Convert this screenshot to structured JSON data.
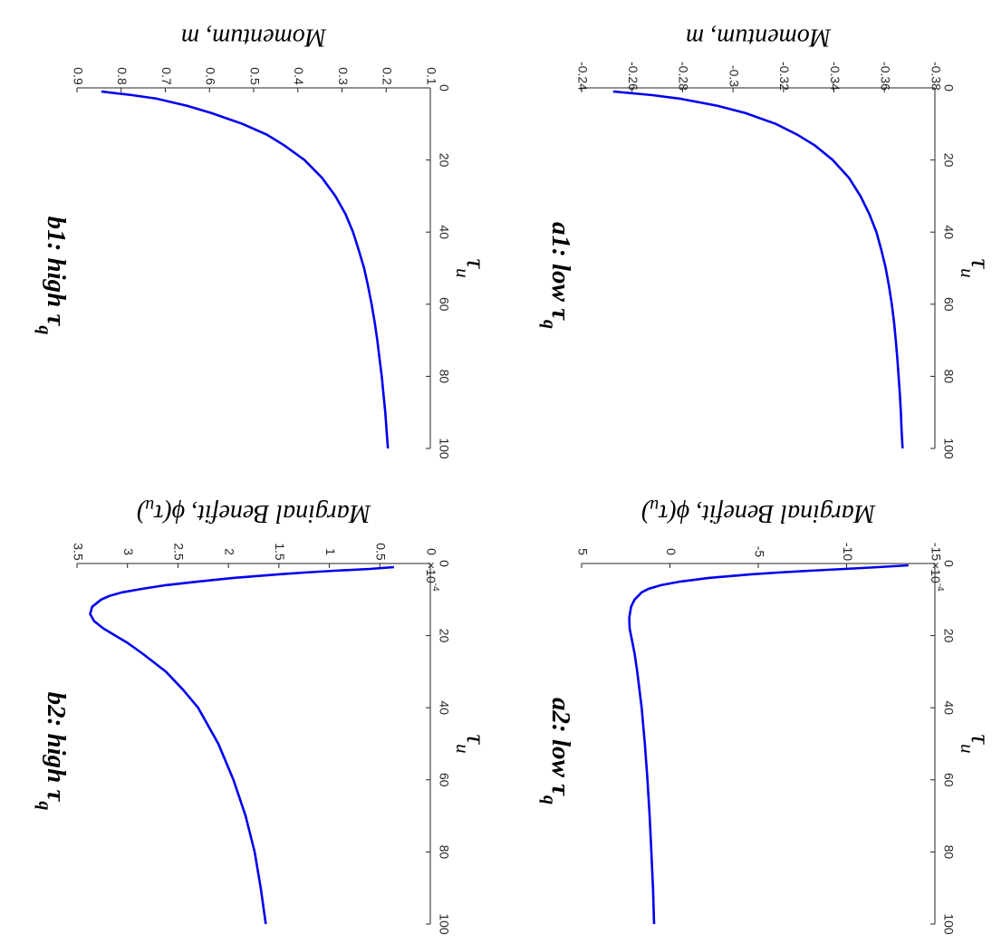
{
  "chart_data": [
    {
      "id": "a1",
      "type": "line",
      "title_main": "a1: low τ",
      "title_sub": "q",
      "xlabel_main": "τ",
      "xlabel_sub": "u",
      "ylabel": "Momentum, m",
      "xlim": [
        0,
        100
      ],
      "ylim": [
        -0.38,
        -0.24
      ],
      "xticks": [
        "0",
        "20",
        "40",
        "60",
        "80",
        "100"
      ],
      "yticks": [
        "-0.38",
        "-0.36",
        "-0.34",
        "-0.32",
        "-0.3",
        "-0.28",
        "-0.26",
        "-0.24"
      ],
      "exponent_label": "",
      "series": [
        {
          "color": "#0000ee",
          "x": [
            1,
            2,
            3,
            5,
            7,
            10,
            13,
            16,
            20,
            25,
            30,
            35,
            40,
            45,
            50,
            55,
            60,
            65,
            70,
            75,
            80,
            85,
            90,
            95,
            100
          ],
          "y": [
            -0.2525,
            -0.268,
            -0.279,
            -0.294,
            -0.305,
            -0.317,
            -0.3255,
            -0.3325,
            -0.3395,
            -0.346,
            -0.3505,
            -0.354,
            -0.3568,
            -0.3588,
            -0.3605,
            -0.3618,
            -0.3629,
            -0.3638,
            -0.3645,
            -0.3651,
            -0.3656,
            -0.3661,
            -0.3665,
            -0.3668,
            -0.3672
          ]
        }
      ]
    },
    {
      "id": "b1",
      "type": "line",
      "title_main": "b1: high τ",
      "title_sub": "q",
      "xlabel_main": "τ",
      "xlabel_sub": "u",
      "ylabel": "Momentum, m",
      "xlim": [
        0,
        100
      ],
      "ylim": [
        0.1,
        0.9
      ],
      "xticks": [
        "0",
        "20",
        "40",
        "60",
        "80",
        "100"
      ],
      "yticks": [
        "0.1",
        "0.2",
        "0.3",
        "0.4",
        "0.5",
        "0.6",
        "0.7",
        "0.8",
        "0.9"
      ],
      "exponent_label": "",
      "series": [
        {
          "color": "#0000ee",
          "x": [
            1,
            2,
            3,
            5,
            7,
            10,
            13,
            16,
            20,
            25,
            30,
            35,
            40,
            45,
            50,
            55,
            60,
            65,
            70,
            75,
            80,
            85,
            90,
            95,
            100
          ],
          "y": [
            0.845,
            0.775,
            0.72,
            0.65,
            0.595,
            0.525,
            0.47,
            0.43,
            0.385,
            0.345,
            0.315,
            0.292,
            0.275,
            0.262,
            0.25,
            0.241,
            0.233,
            0.226,
            0.22,
            0.215,
            0.21,
            0.206,
            0.202,
            0.199,
            0.196
          ]
        }
      ]
    },
    {
      "id": "a2",
      "type": "line",
      "title_main": "a2: low τ",
      "title_sub": "q",
      "xlabel_main": "τ",
      "xlabel_sub": "u",
      "ylabel": "Marginal Benefit, ϕ(τ_u)",
      "ylabel_main": "Marginal Benefit, ϕ(τ",
      "ylabel_sub": "u",
      "ylabel_close": ")",
      "xlim": [
        0,
        100
      ],
      "ylim": [
        -15,
        5
      ],
      "xticks": [
        "0",
        "20",
        "40",
        "60",
        "80",
        "100"
      ],
      "yticks": [
        "-15",
        "-10",
        "-5",
        "0",
        "5"
      ],
      "exponent_label": "×10",
      "exponent_power": "-4",
      "series": [
        {
          "color": "#0000ee",
          "x": [
            0.5,
            1,
            1.5,
            2,
            2.5,
            3,
            4,
            5,
            6,
            7,
            8,
            10,
            12,
            15,
            18,
            20,
            25,
            30,
            40,
            50,
            60,
            70,
            80,
            90,
            100
          ],
          "y": [
            -13.5,
            -11.8,
            -9.9,
            -7.9,
            -6.1,
            -4.6,
            -2.2,
            -0.6,
            0.5,
            1.2,
            1.6,
            2.0,
            2.2,
            2.3,
            2.28,
            2.2,
            2.0,
            1.85,
            1.6,
            1.42,
            1.27,
            1.15,
            1.05,
            0.96,
            0.9
          ]
        }
      ]
    },
    {
      "id": "b2",
      "type": "line",
      "title_main": "b2: high τ",
      "title_sub": "q",
      "xlabel_main": "τ",
      "xlabel_sub": "u",
      "ylabel": "Marginal Benefit, ϕ(τ_u)",
      "ylabel_main": "Marginal Benefit, ϕ(τ",
      "ylabel_sub": "u",
      "ylabel_close": ")",
      "xlim": [
        0,
        100
      ],
      "ylim": [
        0,
        3.5
      ],
      "xticks": [
        "0",
        "20",
        "40",
        "60",
        "80",
        "100"
      ],
      "yticks": [
        "0",
        "0.5",
        "1",
        "1.5",
        "2",
        "2.5",
        "3",
        "3.5"
      ],
      "exponent_label": "×10",
      "exponent_power": "-4",
      "series": [
        {
          "color": "#0000ee",
          "x": [
            1,
            1.5,
            2,
            2.5,
            3,
            4,
            5,
            6,
            7,
            8,
            9,
            10,
            12,
            14,
            16,
            18,
            20,
            22,
            25,
            30,
            35,
            40,
            50,
            60,
            70,
            80,
            90,
            100
          ],
          "y": [
            0.36,
            0.6,
            0.95,
            1.25,
            1.5,
            1.95,
            2.3,
            2.62,
            2.85,
            3.05,
            3.18,
            3.26,
            3.35,
            3.37,
            3.33,
            3.24,
            3.12,
            3.0,
            2.85,
            2.62,
            2.45,
            2.3,
            2.1,
            1.95,
            1.83,
            1.74,
            1.68,
            1.63
          ]
        }
      ]
    }
  ]
}
